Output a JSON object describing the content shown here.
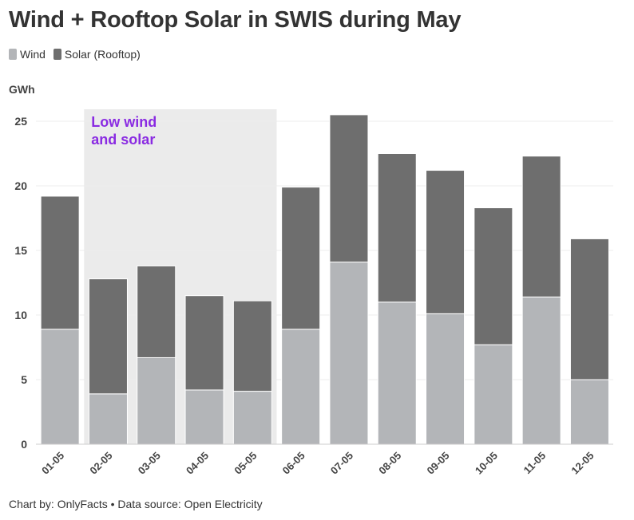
{
  "title": "Wind + Rooftop Solar in SWIS during May",
  "legend": [
    {
      "label": "Wind",
      "color": "#b3b5b8"
    },
    {
      "label": "Solar (Rooftop)",
      "color": "#6e6e6e"
    }
  ],
  "footer": "Chart by: OnlyFacts • Data source: Open Electricity",
  "chart_data": {
    "type": "bar",
    "stacked": true,
    "ylabel": "GWh",
    "xlabel": "",
    "ylim": [
      0,
      26
    ],
    "yticks": [
      0,
      5,
      10,
      15,
      20,
      25
    ],
    "grid": true,
    "legend_position": "top-left",
    "categories": [
      "01-05",
      "02-05",
      "03-05",
      "04-05",
      "05-05",
      "06-05",
      "07-05",
      "08-05",
      "09-05",
      "10-05",
      "11-05",
      "12-05"
    ],
    "series": [
      {
        "name": "Wind",
        "color": "#b3b5b8",
        "values": [
          8.9,
          3.9,
          6.7,
          4.2,
          4.1,
          8.9,
          14.1,
          11.0,
          10.1,
          7.7,
          11.4,
          5.0
        ]
      },
      {
        "name": "Solar (Rooftop)",
        "color": "#6e6e6e",
        "values": [
          10.3,
          8.9,
          7.1,
          7.3,
          7.0,
          11.0,
          11.4,
          11.5,
          11.1,
          10.6,
          10.9,
          10.9
        ]
      }
    ],
    "annotation": {
      "text": [
        "Low wind",
        "and solar"
      ],
      "from_category": "02-05",
      "to_category": "05-05",
      "color": "#8a2be2",
      "shade": "#ebebeb"
    }
  }
}
